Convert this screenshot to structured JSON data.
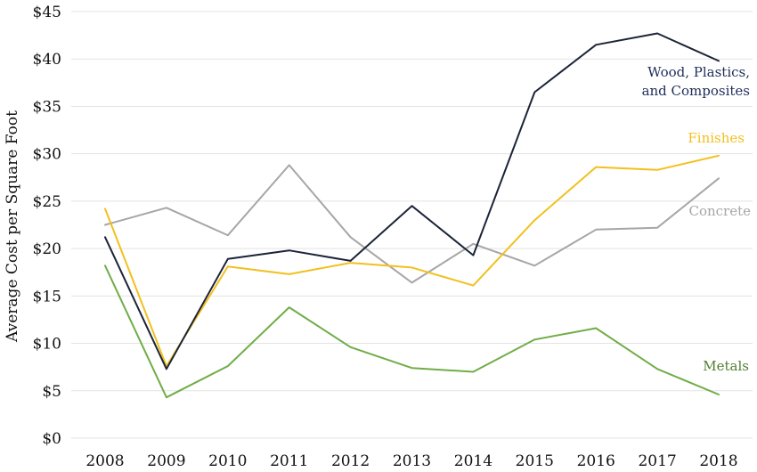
{
  "chart_data": {
    "type": "line",
    "title": "",
    "xlabel": "",
    "ylabel": "Average Cost per Square Foot",
    "x": [
      "2008",
      "2009",
      "2010",
      "2011",
      "2012",
      "2013",
      "2014",
      "2015",
      "2016",
      "2017",
      "2018"
    ],
    "ylim": [
      0,
      45
    ],
    "yticks": [
      0,
      5,
      10,
      15,
      20,
      25,
      30,
      35,
      40,
      45
    ],
    "ytick_labels": [
      "$0",
      "$5",
      "$10",
      "$15",
      "$20",
      "$25",
      "$30",
      "$35",
      "$40",
      "$45"
    ],
    "grid": true,
    "legend": "direct labels at line ends",
    "series": [
      {
        "name": "Concrete",
        "label_lines": [
          "Concrete"
        ],
        "color": "#a6a6a6",
        "values": [
          22.5,
          24.3,
          21.4,
          28.8,
          21.2,
          16.4,
          20.5,
          18.2,
          22.0,
          22.2,
          27.4
        ]
      },
      {
        "name": "Finishes",
        "label_lines": [
          "Finishes"
        ],
        "color": "#f2c01e",
        "values": [
          24.2,
          7.6,
          18.1,
          17.3,
          18.5,
          18.0,
          16.1,
          23.0,
          28.6,
          28.3,
          29.8
        ]
      },
      {
        "name": "Wood, Plastics, and Composites",
        "label_lines": [
          "Wood, Plastics,",
          "and Composites"
        ],
        "color": "#1b2438",
        "label_color": "#1f2e5a",
        "values": [
          21.2,
          7.3,
          18.9,
          19.8,
          18.7,
          24.5,
          19.3,
          36.5,
          41.5,
          42.7,
          39.8
        ]
      },
      {
        "name": "Metals",
        "label_lines": [
          "Metals"
        ],
        "color": "#70ad47",
        "label_color": "#4e7f2f",
        "values": [
          18.2,
          4.3,
          7.6,
          13.8,
          9.6,
          7.4,
          7.0,
          10.4,
          11.6,
          7.3,
          4.6
        ]
      }
    ]
  }
}
